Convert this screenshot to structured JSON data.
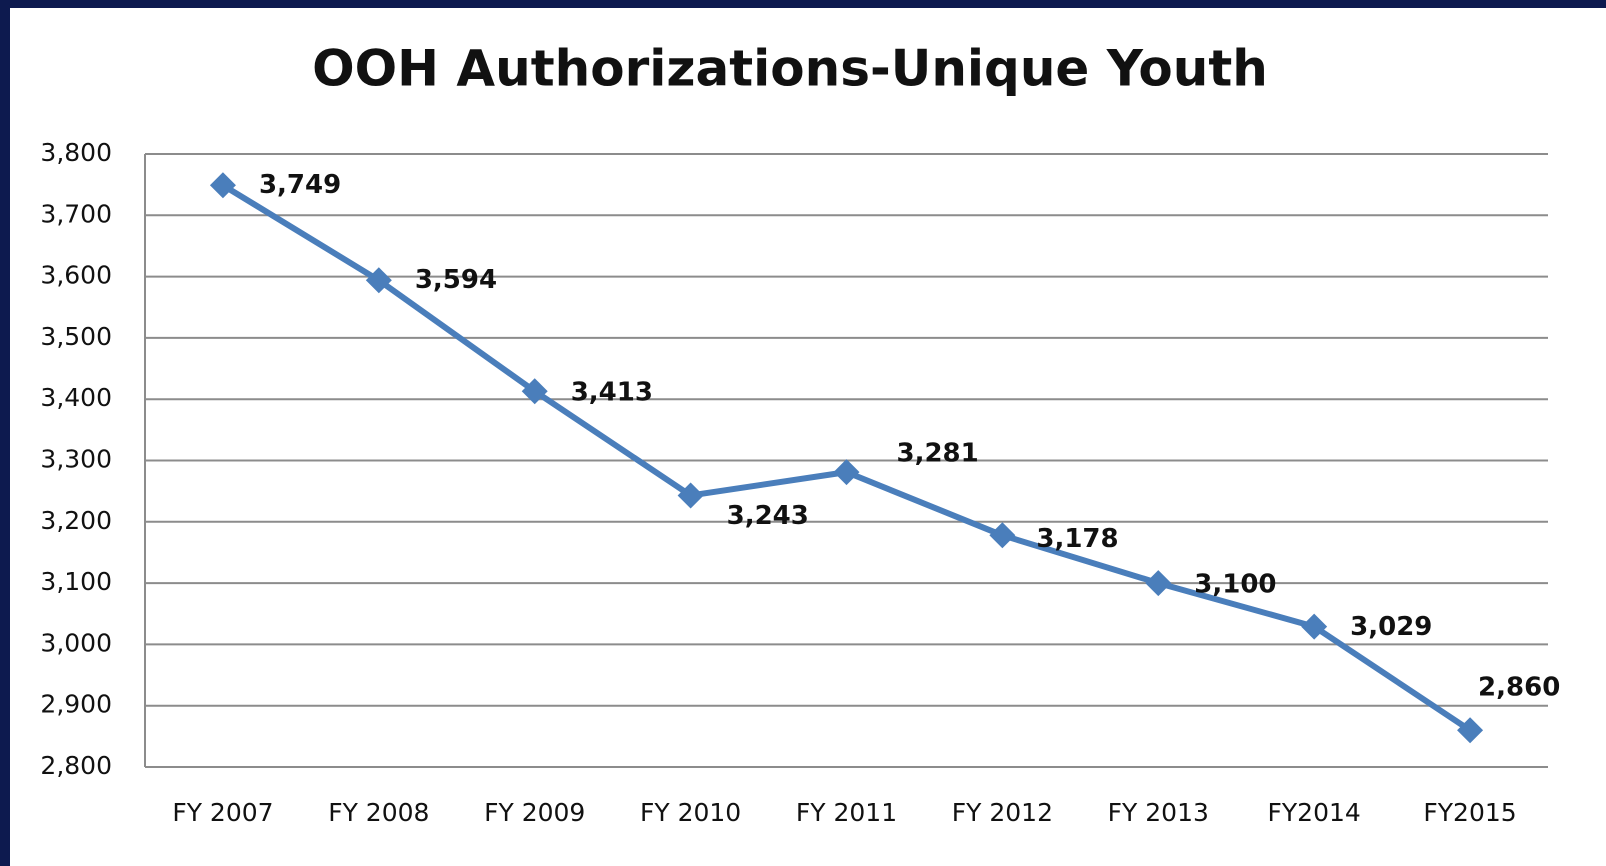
{
  "chart_data": {
    "type": "line",
    "title": "OOH Authorizations-Unique Youth",
    "categories": [
      "FY 2007",
      "FY 2008",
      "FY 2009",
      "FY 2010",
      "FY 2011",
      "FY 2012",
      "FY 2013",
      "FY2014",
      "FY2015"
    ],
    "series": [
      {
        "color": "#4a7ebb",
        "values": [
          3749,
          3594,
          3413,
          3243,
          3281,
          3178,
          3100,
          3029,
          2860
        ],
        "value_labels": [
          "3,749",
          "3,594",
          "3,413",
          "3,243",
          "3,281",
          "3,178",
          "3,100",
          "3,029",
          "2,860"
        ]
      }
    ],
    "ylim": [
      2800,
      3800
    ],
    "yticks": [
      {
        "value": 2800,
        "label": "2,800"
      },
      {
        "value": 2900,
        "label": "2,900"
      },
      {
        "value": 3000,
        "label": "3,000"
      },
      {
        "value": 3100,
        "label": "3,100"
      },
      {
        "value": 3200,
        "label": "3,200"
      },
      {
        "value": 3300,
        "label": "3,300"
      },
      {
        "value": 3400,
        "label": "3,400"
      },
      {
        "value": 3500,
        "label": "3,500"
      },
      {
        "value": 3600,
        "label": "3,600"
      },
      {
        "value": 3700,
        "label": "3,700"
      },
      {
        "value": 3800,
        "label": "3,800"
      }
    ],
    "grid": true
  }
}
